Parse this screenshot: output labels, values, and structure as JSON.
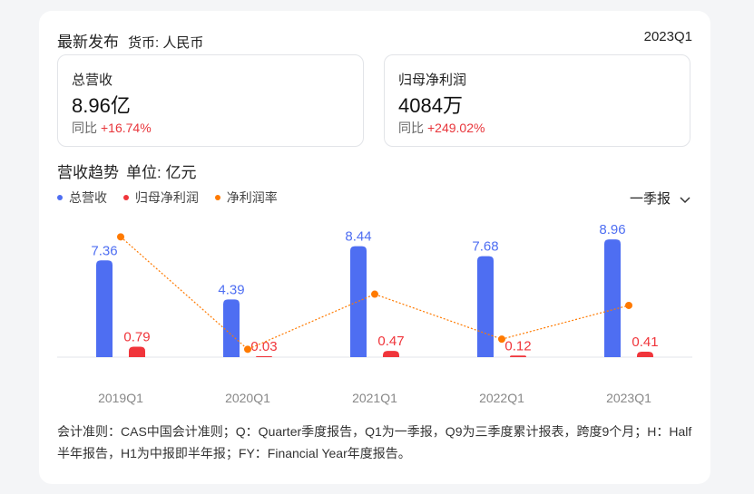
{
  "header": {
    "title": "最新发布",
    "currency": "货币: 人民币",
    "period": "2023Q1"
  },
  "metrics": [
    {
      "label": "总营收",
      "value": "8.96亿",
      "yoy_label": "同比",
      "yoy_value": "+16.74%"
    },
    {
      "label": "归母净利润",
      "value": "4084万",
      "yoy_label": "同比",
      "yoy_value": "+249.02%"
    }
  ],
  "trend": {
    "title": "营收趋势",
    "unit": "单位: 亿元"
  },
  "report_select": {
    "value": "一季报",
    "icon": "chevron-down-icon"
  },
  "colors": {
    "revenue": "#4e6ef2",
    "net_profit": "#f0353b",
    "margin": "#ff7a00",
    "up": "#e8353b"
  },
  "chart_data": {
    "type": "bar",
    "categories": [
      "2019Q1",
      "2020Q1",
      "2021Q1",
      "2022Q1",
      "2023Q1"
    ],
    "series": [
      {
        "name": "总营收",
        "type": "bar",
        "values": [
          7.36,
          4.39,
          8.44,
          7.68,
          8.96
        ]
      },
      {
        "name": "归母净利润",
        "type": "bar",
        "values": [
          0.79,
          0.03,
          0.47,
          0.12,
          0.41
        ]
      },
      {
        "name": "净利润率",
        "type": "line",
        "values": [
          10.7,
          0.7,
          5.6,
          1.6,
          4.6
        ]
      }
    ],
    "legend_position": "top-left",
    "grid": false
  },
  "footnote": "会计准则：CAS中国会计准则；Q：Quarter季度报告，Q1为一季报，Q9为三季度累计报表，跨度9个月；H：Half半年报告，H1为中报即半年报；FY：Financial Year年度报告。"
}
